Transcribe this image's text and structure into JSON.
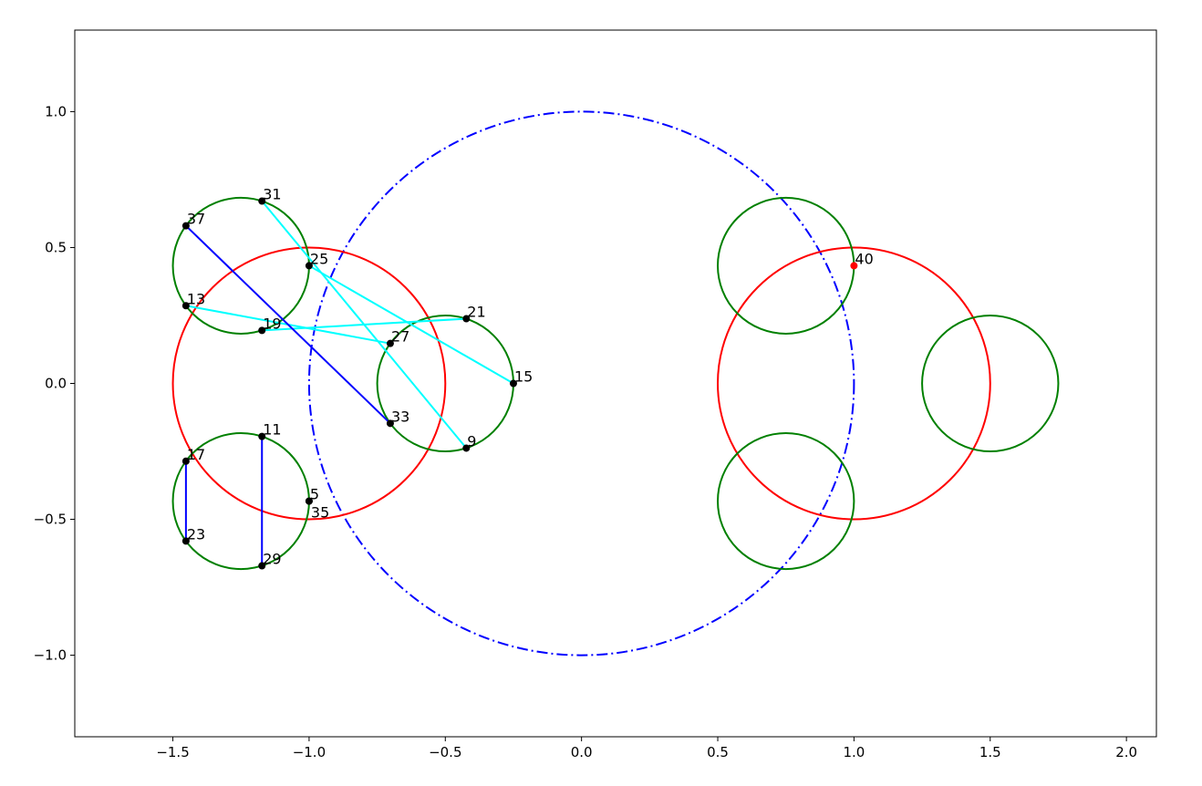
{
  "chart_data": {
    "type": "scatter",
    "xlim": [
      -1.86,
      2.11
    ],
    "ylim": [
      -1.3,
      1.3
    ],
    "grid": false,
    "xticks": [
      -1.5,
      -1.0,
      -0.5,
      0.0,
      0.5,
      1.0,
      1.5,
      2.0
    ],
    "xtick_labels": [
      "−1.5",
      "−1.0",
      "−0.5",
      "0.0",
      "0.5",
      "1.0",
      "1.5",
      "2.0"
    ],
    "yticks": [
      -1.0,
      -0.5,
      0.0,
      0.5,
      1.0
    ],
    "ytick_labels": [
      "−1.0",
      "−0.5",
      "0.0",
      "0.5",
      "1.0"
    ],
    "circles": [
      {
        "cx": 0,
        "cy": 0,
        "r": 1,
        "color": "#0000ff",
        "style": "dashdot"
      },
      {
        "cx": -1,
        "cy": 0,
        "r": 0.5,
        "color": "#ff0000",
        "style": "solid"
      },
      {
        "cx": 1,
        "cy": 0,
        "r": 0.5,
        "color": "#ff0000",
        "style": "solid"
      },
      {
        "cx": -1.25,
        "cy": 0.433,
        "r": 0.25,
        "color": "#008000",
        "style": "solid"
      },
      {
        "cx": -1.25,
        "cy": -0.433,
        "r": 0.25,
        "color": "#008000",
        "style": "solid"
      },
      {
        "cx": -0.5,
        "cy": 0,
        "r": 0.25,
        "color": "#008000",
        "style": "solid"
      },
      {
        "cx": 0.75,
        "cy": 0.433,
        "r": 0.25,
        "color": "#008000",
        "style": "solid"
      },
      {
        "cx": 0.75,
        "cy": -0.433,
        "r": 0.25,
        "color": "#008000",
        "style": "solid"
      },
      {
        "cx": 1.5,
        "cy": 0,
        "r": 0.25,
        "color": "#008000",
        "style": "solid"
      }
    ],
    "segments": [
      {
        "from": [
          -1.173,
          0.671
        ],
        "to": [
          -0.423,
          -0.238
        ],
        "color": "#00ffff"
      },
      {
        "from": [
          -1.0,
          0.433
        ],
        "to": [
          -0.25,
          0.0
        ],
        "color": "#00ffff"
      },
      {
        "from": [
          -1.452,
          0.286
        ],
        "to": [
          -0.702,
          0.147
        ],
        "color": "#00ffff"
      },
      {
        "from": [
          -1.173,
          0.195
        ],
        "to": [
          -0.423,
          0.238
        ],
        "color": "#00ffff"
      },
      {
        "from": [
          -1.452,
          0.58
        ],
        "to": [
          -0.702,
          -0.147
        ],
        "color": "#0000ff"
      },
      {
        "from": [
          -1.452,
          -0.286
        ],
        "to": [
          -1.452,
          -0.58
        ],
        "color": "#0000ff"
      },
      {
        "from": [
          -1.173,
          -0.195
        ],
        "to": [
          -1.173,
          -0.671
        ],
        "color": "#0000ff"
      }
    ],
    "points": [
      {
        "label": "31",
        "x": -1.173,
        "y": 0.671,
        "color": "#000000"
      },
      {
        "label": "37",
        "x": -1.452,
        "y": 0.58,
        "color": "#000000"
      },
      {
        "label": "25",
        "x": -1.0,
        "y": 0.433,
        "color": "#000000"
      },
      {
        "label": "13",
        "x": -1.452,
        "y": 0.286,
        "color": "#000000"
      },
      {
        "label": "19",
        "x": -1.173,
        "y": 0.195,
        "color": "#000000"
      },
      {
        "label": "21",
        "x": -0.423,
        "y": 0.238,
        "color": "#000000"
      },
      {
        "label": "27",
        "x": -0.702,
        "y": 0.147,
        "color": "#000000"
      },
      {
        "label": "15",
        "x": -0.25,
        "y": 0.0,
        "color": "#000000"
      },
      {
        "label": "33",
        "x": -0.702,
        "y": -0.147,
        "color": "#000000"
      },
      {
        "label": "9",
        "x": -0.423,
        "y": -0.238,
        "color": "#000000"
      },
      {
        "label": "11",
        "x": -1.173,
        "y": -0.195,
        "color": "#000000"
      },
      {
        "label": "17",
        "x": -1.452,
        "y": -0.286,
        "color": "#000000"
      },
      {
        "label": "5",
        "x": -1.0,
        "y": -0.433,
        "color": "#000000"
      },
      {
        "label": "35",
        "x": -1.0,
        "y": -0.433,
        "color": "#000000"
      },
      {
        "label": "23",
        "x": -1.452,
        "y": -0.58,
        "color": "#000000"
      },
      {
        "label": "29",
        "x": -1.173,
        "y": -0.671,
        "color": "#000000"
      },
      {
        "label": "40",
        "x": 1.0,
        "y": 0.433,
        "color": "#ff0000"
      }
    ]
  }
}
